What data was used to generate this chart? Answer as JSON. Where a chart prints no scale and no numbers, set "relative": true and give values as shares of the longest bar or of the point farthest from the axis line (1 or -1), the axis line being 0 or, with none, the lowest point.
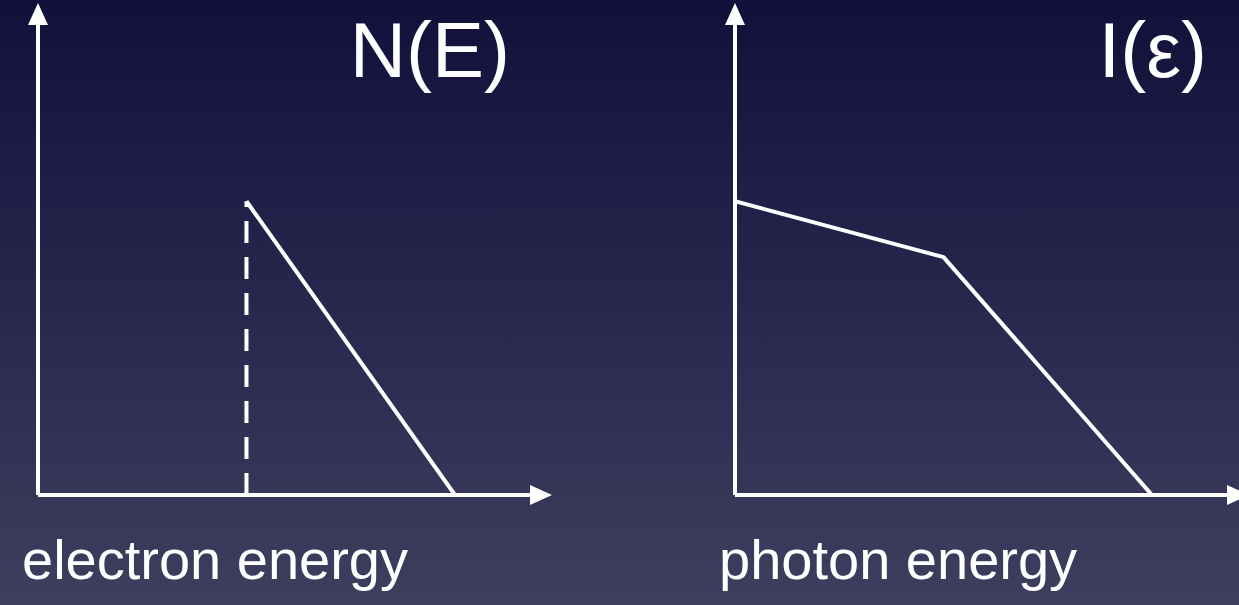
{
  "chart_data": [
    {
      "type": "line",
      "title": "N(E)",
      "xlabel": "electron energy",
      "relative": true,
      "categories": [
        null,
        null,
        null,
        null,
        null
      ],
      "marker": "none",
      "series": [
        {
          "color": "#ffffff",
          "values": [
            null,
            null,
            1,
            null,
            0
          ],
          "line_style": "solid"
        }
      ]
    },
    {
      "type": "line",
      "title": "I(ε)",
      "xlabel": "photon energy",
      "relative": true,
      "categories": [
        null,
        null,
        null,
        null,
        null
      ],
      "marker": "none",
      "series": [
        {
          "color": "#ffffff",
          "values": [
            1,
            null,
            0.81,
            null,
            0
          ],
          "line_style": "solid"
        }
      ]
    }
  ]
}
